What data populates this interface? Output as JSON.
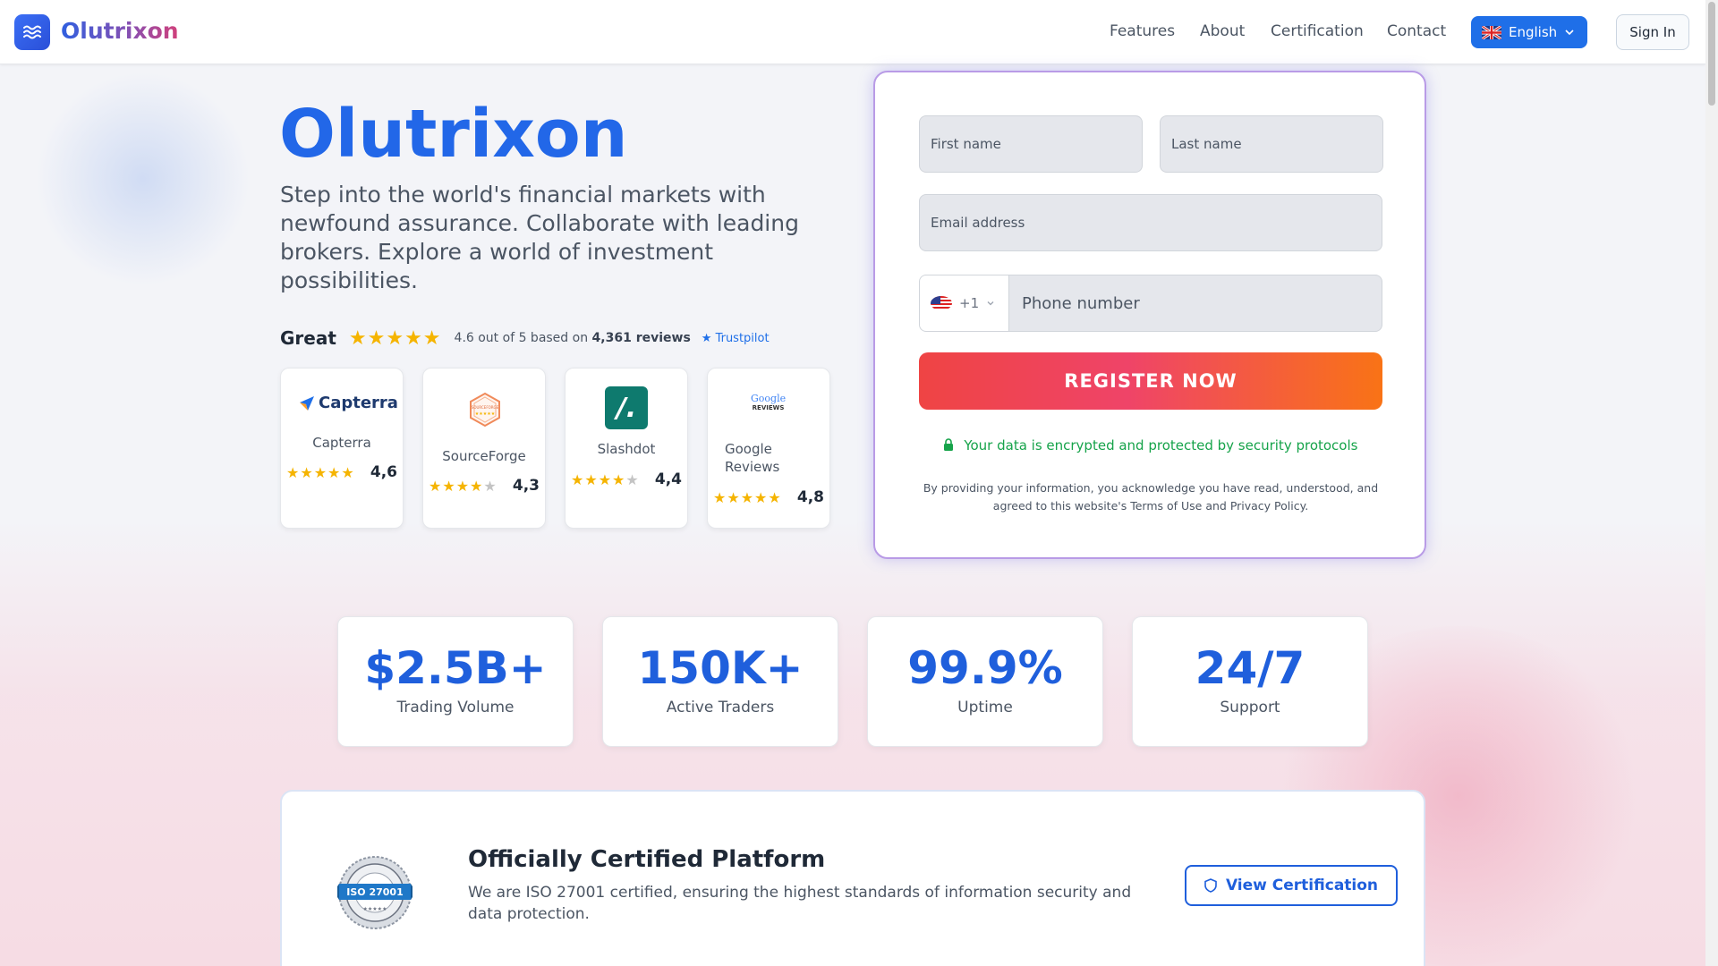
{
  "header": {
    "brand": "Olutrixon",
    "nav": [
      "Features",
      "About",
      "Certification",
      "Contact"
    ],
    "language": "English",
    "signin": "Sign In"
  },
  "hero": {
    "title": "Olutrixon",
    "subtitle": "Step into the world's financial markets with newfound assurance. Collaborate with leading brokers. Explore a world of investment possibilities.",
    "rating_word": "Great",
    "rating_prefix": "4.6 out of 5 based on",
    "rating_count": "4,361 reviews",
    "trustpilot": "★ Trustpilot"
  },
  "reviews": [
    {
      "name": "Capterra",
      "logo": "Capterra",
      "score": "4,6",
      "stars": 5
    },
    {
      "name": "SourceForge",
      "logo": "SOURCEFORGE",
      "score": "4,3",
      "stars": 4
    },
    {
      "name": "Slashdot",
      "logo": "/.",
      "score": "4,4",
      "stars": 4
    },
    {
      "name": "Google Reviews",
      "logo_top": "Google",
      "logo_bottom": "REVIEWS",
      "score": "4,8",
      "stars": 5
    }
  ],
  "form": {
    "first_name": "First name",
    "last_name": "Last name",
    "email": "Email address",
    "phone_code": "+1",
    "phone": "Phone number",
    "submit": "REGISTER NOW",
    "secure_note": "Your data is encrypted and protected by security protocols",
    "disclaimer": "By providing your information, you acknowledge you have read, understood, and agreed to this website's Terms of Use and Privacy Policy."
  },
  "stats": [
    {
      "value": "$2.5B+",
      "label": "Trading Volume"
    },
    {
      "value": "150K+",
      "label": "Active Traders"
    },
    {
      "value": "99.9%",
      "label": "Uptime"
    },
    {
      "value": "24/7",
      "label": "Support"
    }
  ],
  "certification": {
    "badge": "ISO 27001",
    "title": "Officially Certified Platform",
    "description": "We are ISO 27001 certified, ensuring the highest standards of information security and data protection.",
    "button": "View Certification"
  },
  "colors": {
    "primary": "#2267e8",
    "star": "#f5b400",
    "success": "#16a34a",
    "cta_start": "#ef4444",
    "cta_end": "#f97316"
  }
}
